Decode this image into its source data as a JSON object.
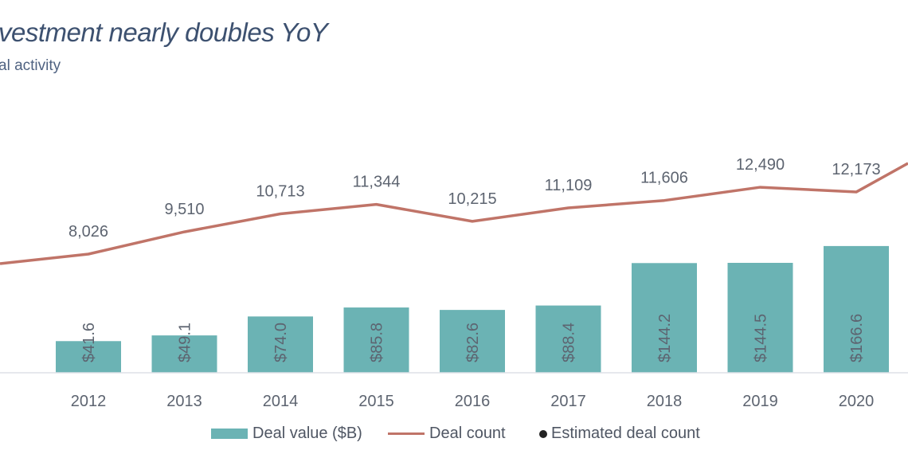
{
  "title": "vestment nearly doubles YoY",
  "subtitle": "al activity",
  "colors": {
    "bar": "#6bb3b4",
    "line": "#c07468",
    "text": "#555e6b",
    "title": "#3d5170"
  },
  "chart_data": {
    "type": "bar+line",
    "title": "vestment nearly doubles YoY",
    "subtitle": "al activity",
    "categories": [
      "2012",
      "2013",
      "2014",
      "2015",
      "2016",
      "2017",
      "2018",
      "2019",
      "2020"
    ],
    "series": [
      {
        "name": "Deal value ($B)",
        "type": "bar",
        "values": [
          41.6,
          49.1,
          74.0,
          85.8,
          82.6,
          88.4,
          144.2,
          144.5,
          166.6
        ],
        "labels": [
          "$41.6",
          "$49.1",
          "$74.0",
          "$85.8",
          "$82.6",
          "$88.4",
          "$144.2",
          "$144.5",
          "$166.6"
        ]
      },
      {
        "name": "Deal count",
        "type": "line",
        "values": [
          8026,
          9510,
          10713,
          11344,
          10215,
          11109,
          11606,
          12490,
          12173
        ],
        "labels": [
          "8,026",
          "9,510",
          "10,713",
          "11,344",
          "10,215",
          "11,109",
          "11,606",
          "12,490",
          "12,173"
        ]
      }
    ],
    "legend": {
      "position": "bottom",
      "items": [
        "Deal value ($B)",
        "Deal count",
        "Estimated deal count"
      ]
    },
    "grid": false
  }
}
